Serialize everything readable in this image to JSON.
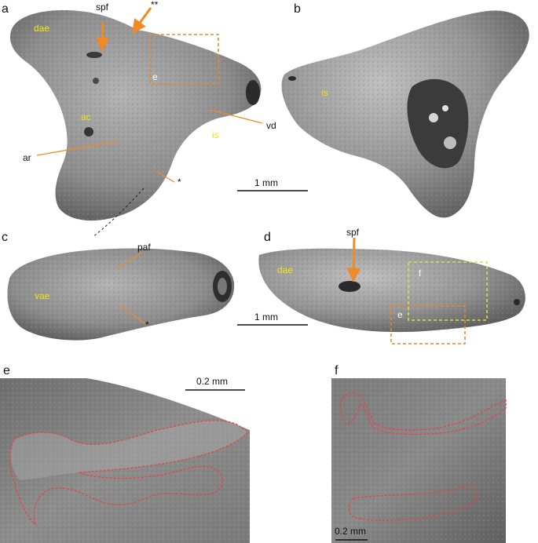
{
  "panels": {
    "a": "a",
    "b": "b",
    "c": "c",
    "d": "d",
    "e": "e",
    "f": "f"
  },
  "labels": {
    "a_spf": "spf",
    "a_doublestar": "**",
    "a_dae": "dae",
    "a_ac": "ac",
    "a_ar": "ar",
    "a_is": "is",
    "a_vd": "vd",
    "a_star": "*",
    "a_inset_e": "e",
    "b_is": "is",
    "c_paf": "paf",
    "c_vae": "vae",
    "c_star": "*",
    "d_spf": "spf",
    "d_dae": "dae",
    "d_inset_f": "f",
    "d_inset_e": "e"
  },
  "scalebars": {
    "ab": "1 mm",
    "cd": "1 mm",
    "e": "0.2 mm",
    "f": "0.2 mm"
  },
  "colors": {
    "annotation_orange": "#f08a24",
    "label_yellow": "#f3e313",
    "inset_e_box": "#e8892b",
    "inset_f_box": "#dede3c",
    "outline_red": "#e0474c"
  }
}
